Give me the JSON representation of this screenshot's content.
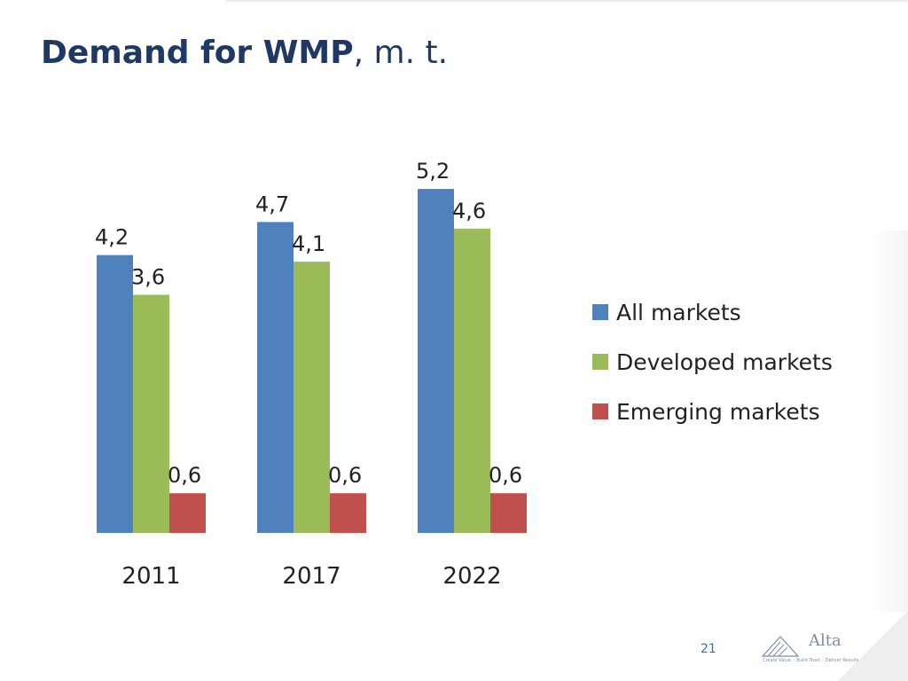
{
  "header": {
    "title_bold": "Demand for WMP",
    "title_rest": ", m. t."
  },
  "footer": {
    "page_number": "21",
    "logo_text": "Alta",
    "logo_tagline": "Create Value ∴ Build Trust ∴ Deliver Results"
  },
  "colors": {
    "title": "#1f3864",
    "all_markets": "#4f81bd",
    "developed_markets": "#9bbb59",
    "emerging_markets": "#c0504d"
  },
  "chart_data": {
    "type": "bar",
    "categories": [
      "2011",
      "2017",
      "2022"
    ],
    "series": [
      {
        "name": "All markets",
        "values": [
          4.2,
          4.7,
          5.2
        ],
        "labels": [
          "4,2",
          "4,7",
          "5,2"
        ],
        "color": "#4f81bd"
      },
      {
        "name": "Developed markets",
        "values": [
          3.6,
          4.1,
          4.6
        ],
        "labels": [
          "3,6",
          "4,1",
          "4,6"
        ],
        "color": "#9bbb59"
      },
      {
        "name": "Emerging markets",
        "values": [
          0.6,
          0.6,
          0.6
        ],
        "labels": [
          "0,6",
          "0,6",
          "0,6"
        ],
        "color": "#c0504d"
      }
    ],
    "ylim": [
      0,
      5.2
    ],
    "grid": false,
    "legend": "right"
  }
}
